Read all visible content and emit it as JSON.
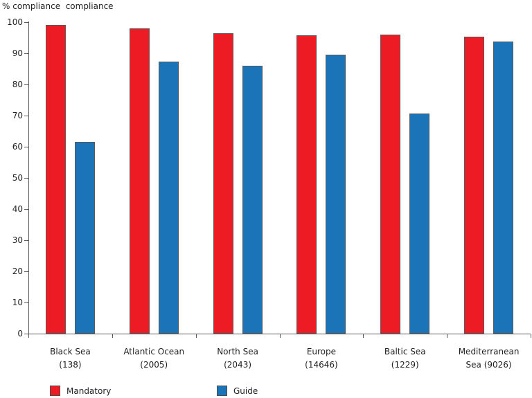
{
  "title": "% compliance  compliance",
  "colors": {
    "mandatory_red": "#EC1B24",
    "guide_blue": "#1B74B8",
    "axis": "#595959",
    "text": "#1F1F1F",
    "bar_outline": "#58595B"
  },
  "chart_data": {
    "type": "bar",
    "title": "% compliance  compliance",
    "xlabel": "",
    "ylabel": "% compliance",
    "ylim": [
      0,
      100
    ],
    "yticks": [
      0,
      10,
      20,
      30,
      40,
      50,
      60,
      70,
      80,
      90,
      100
    ],
    "grid": false,
    "legend_position": "bottom",
    "categories": [
      {
        "label": "Black Sea (138)",
        "label_lines": [
          "Black Sea",
          "(138)"
        ]
      },
      {
        "label": "Atlantic Ocean (2005)",
        "label_lines": [
          "Atlantic Ocean",
          "(2005)"
        ]
      },
      {
        "label": "North Sea (2043)",
        "label_lines": [
          "North Sea",
          "(2043)"
        ]
      },
      {
        "label": "Europe (14646)",
        "label_lines": [
          "Europe",
          "(14646)"
        ]
      },
      {
        "label": "Baltic Sea (1229)",
        "label_lines": [
          "Baltic Sea",
          "(1229)"
        ]
      },
      {
        "label": "Mediterranean Sea (9026)",
        "label_lines": [
          "Mediterranean",
          "Sea (9026)"
        ]
      }
    ],
    "series": [
      {
        "name": "Mandatory",
        "color": "#EC1B24",
        "values": [
          99.2,
          98.1,
          96.5,
          95.8,
          96.0,
          95.4
        ]
      },
      {
        "name": "Guide",
        "color": "#1B74B8",
        "values": [
          61.5,
          87.3,
          86.0,
          89.5,
          70.7,
          93.8
        ]
      }
    ]
  }
}
